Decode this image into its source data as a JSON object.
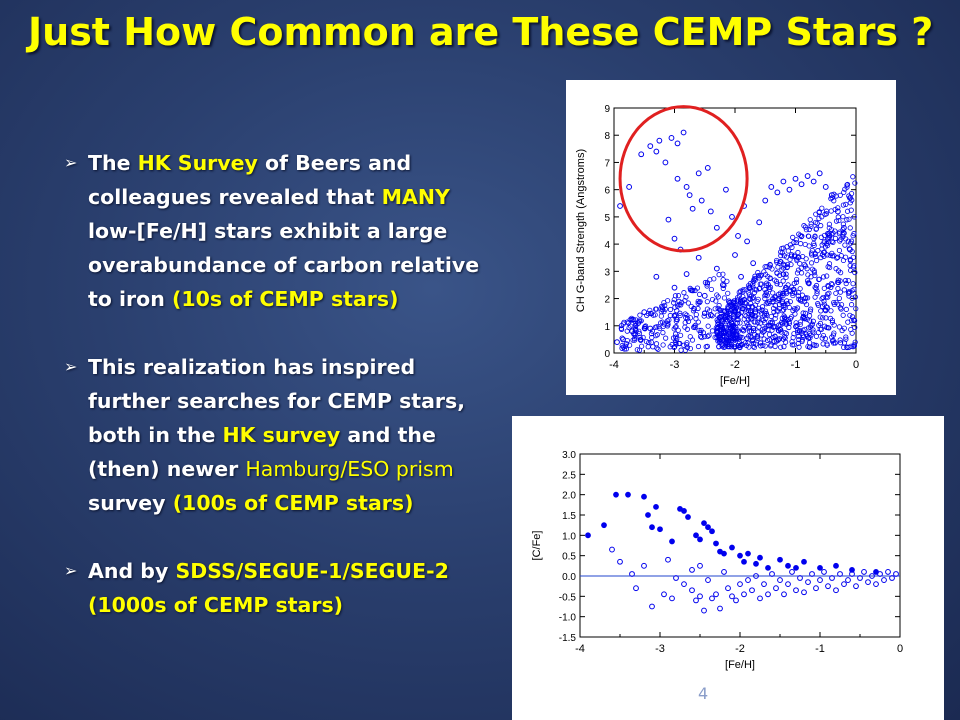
{
  "slide": {
    "title": "Just How Common are These CEMP Stars ?",
    "number": "4"
  },
  "bullets": [
    {
      "parts": [
        {
          "text": "The ",
          "hl": false
        },
        {
          "text": "HK Survey",
          "hl": true
        },
        {
          "text": " of Beers and colleagues revealed that ",
          "hl": false
        },
        {
          "text": "MANY",
          "hl": true
        },
        {
          "text": " low-[Fe/H] stars exhibit a large overabundance of carbon relative to iron  ",
          "hl": false
        },
        {
          "text": "(10s of CEMP stars)",
          "hl": true
        }
      ]
    },
    {
      "parts": [
        {
          "text": "This realization has inspired further searches for CEMP stars, both in the ",
          "hl": false
        },
        {
          "text": "HK survey",
          "hl": true
        },
        {
          "text": " and the (then) newer ",
          "hl": false
        },
        {
          "text": "Hamburg/ESO prism",
          "hl": "normal"
        },
        {
          "text": " survey  ",
          "hl": false
        },
        {
          "text": "(100s of CEMP stars)",
          "hl": true
        }
      ]
    },
    {
      "parts": [
        {
          "text": "And by ",
          "hl": false
        },
        {
          "text": "SDSS/SEGUE-1/SEGUE-2 (1000s of CEMP stars)",
          "hl": true
        }
      ]
    }
  ],
  "colors": {
    "title": "#ffff00",
    "highlight": "#ffff00",
    "text": "#ffffff",
    "points": "#0000ee",
    "circle": "#e02020",
    "refline": "#2244cc"
  },
  "chart_data": [
    {
      "type": "scatter",
      "xlabel": "[Fe/H]",
      "ylabel": "CH G-band Strength (Angstroms)",
      "xlim": [
        -4,
        0
      ],
      "ylim": [
        0,
        9
      ],
      "xticks": [
        "-4",
        "-3",
        "-2",
        "-1",
        "0"
      ],
      "yticks": [
        "0",
        "1",
        "2",
        "3",
        "4",
        "5",
        "6",
        "7",
        "8",
        "9"
      ],
      "annotation": {
        "type": "circle",
        "center": [
          -2.85,
          6.4
        ],
        "radius_x": 1.05,
        "radius_y": 2.65
      },
      "series": [
        {
          "marker": "open-circle",
          "points": [
            [
              -3.9,
              5.4
            ],
            [
              -3.75,
              6.1
            ],
            [
              -3.55,
              7.3
            ],
            [
              -3.4,
              7.6
            ],
            [
              -3.3,
              7.4
            ],
            [
              -3.25,
              7.8
            ],
            [
              -3.15,
              7.0
            ],
            [
              -3.05,
              7.9
            ],
            [
              -2.95,
              7.7
            ],
            [
              -2.85,
              8.1
            ],
            [
              -2.95,
              6.4
            ],
            [
              -2.8,
              6.1
            ],
            [
              -2.75,
              5.8
            ],
            [
              -2.7,
              5.3
            ],
            [
              -2.6,
              6.6
            ],
            [
              -2.55,
              5.6
            ],
            [
              -2.45,
              6.8
            ],
            [
              -2.4,
              5.2
            ],
            [
              -2.3,
              4.6
            ],
            [
              -2.15,
              6.0
            ],
            [
              -2.05,
              5.0
            ],
            [
              -1.95,
              4.3
            ],
            [
              -1.85,
              5.4
            ],
            [
              -3.1,
              4.9
            ],
            [
              -3.0,
              4.2
            ],
            [
              -2.9,
              3.8
            ],
            [
              -3.3,
              2.8
            ],
            [
              -3.5,
              1.5
            ],
            [
              -3.7,
              0.8
            ],
            [
              -3.85,
              0.5
            ],
            [
              -3.95,
              0.4
            ],
            [
              -3.6,
              1.1
            ],
            [
              -3.4,
              0.9
            ],
            [
              -3.2,
              1.6
            ],
            [
              -3.0,
              2.4
            ],
            [
              -2.8,
              2.9
            ],
            [
              -2.6,
              3.5
            ],
            [
              -2.5,
              2.1
            ],
            [
              -2.4,
              1.4
            ],
            [
              -2.3,
              3.1
            ],
            [
              -2.2,
              2.5
            ],
            [
              -2.1,
              1.9
            ],
            [
              -2.0,
              3.6
            ],
            [
              -1.9,
              2.8
            ],
            [
              -1.8,
              4.1
            ],
            [
              -1.7,
              3.3
            ],
            [
              -1.6,
              4.8
            ],
            [
              -1.5,
              5.6
            ],
            [
              -1.4,
              6.1
            ],
            [
              -1.3,
              5.9
            ],
            [
              -1.2,
              6.3
            ],
            [
              -1.1,
              6.0
            ],
            [
              -1.0,
              6.4
            ],
            [
              -0.9,
              6.2
            ],
            [
              -0.8,
              6.5
            ],
            [
              -0.7,
              6.3
            ],
            [
              -0.6,
              6.6
            ],
            [
              -0.5,
              6.1
            ],
            [
              -0.4,
              5.8
            ],
            [
              -0.3,
              5.2
            ],
            [
              -0.2,
              4.6
            ],
            [
              -0.1,
              3.8
            ]
          ]
        }
      ]
    },
    {
      "type": "scatter",
      "xlabel": "[Fe/H]",
      "ylabel": "[C/Fe]",
      "xlim": [
        -4,
        0
      ],
      "ylim": [
        -1.5,
        3.0
      ],
      "xticks": [
        "-4",
        "-3",
        "-2",
        "-1",
        "0"
      ],
      "yticks": [
        "-1.5",
        "-1.0",
        "-0.5",
        "0.0",
        "0.5",
        "1.0",
        "1.5",
        "2.0",
        "2.5",
        "3.0"
      ],
      "reference_line": 0.0,
      "series": [
        {
          "marker": "filled-circle",
          "points": [
            [
              -3.9,
              1.0
            ],
            [
              -3.7,
              1.25
            ],
            [
              -3.55,
              2.0
            ],
            [
              -3.4,
              2.0
            ],
            [
              -3.05,
              1.7
            ],
            [
              -3.2,
              1.95
            ],
            [
              -3.15,
              1.5
            ],
            [
              -3.1,
              1.2
            ],
            [
              -3.0,
              1.15
            ],
            [
              -2.85,
              0.85
            ],
            [
              -2.75,
              1.65
            ],
            [
              -2.7,
              1.6
            ],
            [
              -2.65,
              1.45
            ],
            [
              -2.55,
              1.0
            ],
            [
              -2.5,
              0.9
            ],
            [
              -2.45,
              1.3
            ],
            [
              -2.4,
              1.2
            ],
            [
              -2.35,
              1.1
            ],
            [
              -2.3,
              0.8
            ],
            [
              -2.25,
              0.6
            ],
            [
              -2.2,
              0.55
            ],
            [
              -2.1,
              0.7
            ],
            [
              -2.0,
              0.5
            ],
            [
              -1.95,
              0.35
            ],
            [
              -1.9,
              0.55
            ],
            [
              -1.8,
              0.3
            ],
            [
              -1.75,
              0.45
            ],
            [
              -1.65,
              0.2
            ],
            [
              -1.5,
              0.4
            ],
            [
              -1.4,
              0.25
            ],
            [
              -1.3,
              0.2
            ],
            [
              -1.2,
              0.35
            ],
            [
              -1.0,
              0.2
            ],
            [
              -0.8,
              0.25
            ],
            [
              -0.6,
              0.15
            ],
            [
              -0.3,
              0.1
            ]
          ]
        },
        {
          "marker": "open-circle",
          "points": [
            [
              -3.5,
              0.35
            ],
            [
              -3.35,
              0.05
            ],
            [
              -3.3,
              -0.3
            ],
            [
              -3.1,
              -0.75
            ],
            [
              -2.95,
              -0.45
            ],
            [
              -2.85,
              -0.55
            ],
            [
              -2.8,
              -0.05
            ],
            [
              -2.7,
              -0.2
            ],
            [
              -2.6,
              -0.35
            ],
            [
              -2.55,
              -0.6
            ],
            [
              -2.5,
              -0.5
            ],
            [
              -2.45,
              -0.85
            ],
            [
              -2.4,
              -0.1
            ],
            [
              -2.35,
              -0.55
            ],
            [
              -2.3,
              -0.45
            ],
            [
              -2.25,
              -0.8
            ],
            [
              -2.2,
              0.1
            ],
            [
              -2.15,
              -0.3
            ],
            [
              -2.1,
              -0.5
            ],
            [
              -2.05,
              -0.6
            ],
            [
              -2.0,
              -0.2
            ],
            [
              -1.95,
              -0.45
            ],
            [
              -1.9,
              -0.1
            ],
            [
              -1.85,
              -0.35
            ],
            [
              -1.8,
              0.0
            ],
            [
              -1.75,
              -0.55
            ],
            [
              -1.7,
              -0.2
            ],
            [
              -1.65,
              -0.45
            ],
            [
              -1.6,
              0.05
            ],
            [
              -1.55,
              -0.3
            ],
            [
              -1.5,
              -0.1
            ],
            [
              -1.45,
              -0.45
            ],
            [
              -1.4,
              -0.2
            ],
            [
              -1.35,
              0.1
            ],
            [
              -1.3,
              -0.35
            ],
            [
              -1.25,
              -0.05
            ],
            [
              -1.2,
              -0.4
            ],
            [
              -1.15,
              -0.15
            ],
            [
              -1.1,
              0.05
            ],
            [
              -1.05,
              -0.3
            ],
            [
              -1.0,
              -0.1
            ],
            [
              -0.95,
              0.1
            ],
            [
              -0.9,
              -0.25
            ],
            [
              -0.85,
              -0.05
            ],
            [
              -0.8,
              -0.35
            ],
            [
              -0.75,
              0.05
            ],
            [
              -0.7,
              -0.2
            ],
            [
              -0.65,
              -0.1
            ],
            [
              -0.6,
              0.05
            ],
            [
              -0.55,
              -0.25
            ],
            [
              -0.5,
              -0.05
            ],
            [
              -0.45,
              0.1
            ],
            [
              -0.4,
              -0.15
            ],
            [
              -0.35,
              0.0
            ],
            [
              -0.3,
              -0.2
            ],
            [
              -0.25,
              0.05
            ],
            [
              -0.2,
              -0.1
            ],
            [
              -0.15,
              0.1
            ],
            [
              -0.1,
              -0.05
            ],
            [
              -0.05,
              0.05
            ],
            [
              -3.6,
              0.65
            ],
            [
              -3.2,
              0.25
            ],
            [
              -2.9,
              0.4
            ],
            [
              -2.6,
              0.15
            ],
            [
              -2.5,
              0.25
            ]
          ]
        }
      ]
    }
  ]
}
